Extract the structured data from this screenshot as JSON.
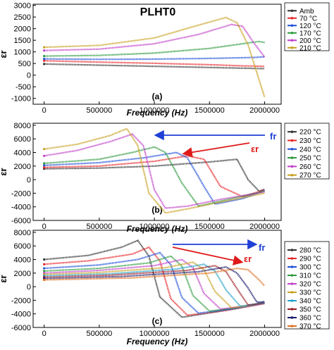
{
  "figure_title": "PLHT0",
  "chart_data": [
    {
      "panel": "(a)",
      "type": "line",
      "title": "PLHT0",
      "xlabel": "Frequency (Hz)",
      "ylabel": "εr",
      "xlim": [
        -100000,
        2150000
      ],
      "ylim": [
        -1250,
        3050
      ],
      "xticks": [
        0,
        500000,
        1000000,
        1500000,
        2000000
      ],
      "xtick_labels": [
        "0",
        "500000",
        "1000000",
        "1500000",
        "2000000"
      ],
      "yticks": [
        -1000,
        -500,
        0,
        500,
        1000,
        1500,
        2000,
        2500,
        3000
      ],
      "ytick_labels": [
        "-1000",
        "-500",
        "0",
        "500",
        "1000",
        "1500",
        "2000",
        "2500",
        "3000"
      ],
      "legend_position": "top-right",
      "series": [
        {
          "name": "Amb",
          "color": "#333333",
          "x": [
            0,
            500000,
            1000000,
            1500000,
            2000000
          ],
          "y": [
            480,
            430,
            380,
            330,
            280
          ]
        },
        {
          "name": "70 °C",
          "color": "#e8282b",
          "x": [
            0,
            500000,
            1000000,
            1500000,
            1800000,
            2000000
          ],
          "y": [
            620,
            560,
            510,
            450,
            400,
            380
          ]
        },
        {
          "name": "120 °C",
          "color": "#2050d8",
          "x": [
            0,
            500000,
            1000000,
            1500000,
            1900000,
            2000000
          ],
          "y": [
            700,
            680,
            690,
            720,
            760,
            790
          ]
        },
        {
          "name": "170 °C",
          "color": "#2e9a3e",
          "x": [
            0,
            500000,
            1000000,
            1500000,
            1800000,
            1950000,
            2000000
          ],
          "y": [
            820,
            850,
            950,
            1150,
            1350,
            1450,
            1400
          ]
        },
        {
          "name": "200 °C",
          "color": "#c040c8",
          "x": [
            0,
            500000,
            1000000,
            1400000,
            1700000,
            1800000,
            1900000,
            2000000
          ],
          "y": [
            1060,
            1120,
            1350,
            1750,
            2180,
            2100,
            1400,
            780
          ]
        },
        {
          "name": "210 °C",
          "color": "#c8a020",
          "x": [
            0,
            500000,
            1000000,
            1400000,
            1650000,
            1750000,
            1850000,
            2000000
          ],
          "y": [
            1200,
            1280,
            1600,
            2150,
            2480,
            2250,
            1300,
            -950
          ]
        }
      ]
    },
    {
      "panel": "(b)",
      "type": "line",
      "xlabel": "Frequency (Hz)",
      "ylabel": "εr",
      "xlim": [
        -100000,
        2150000
      ],
      "ylim": [
        -6000,
        8300
      ],
      "xticks": [
        0,
        500000,
        1000000,
        1500000,
        2000000
      ],
      "xtick_labels": [
        "0",
        "500000",
        "1000000",
        "1500000",
        "2000000"
      ],
      "yticks": [
        -6000,
        -4000,
        -2000,
        0,
        2000,
        4000,
        6000,
        8000
      ],
      "ytick_labels": [
        "-6000",
        "-4000",
        "-2000",
        "0",
        "2000",
        "4000",
        "6000",
        "8000"
      ],
      "legend_position": "right",
      "annotations": [
        "fr",
        "εr"
      ],
      "series": [
        {
          "name": "220 °C",
          "color": "#333333",
          "x": [
            0,
            500000,
            1000000,
            1500000,
            1750000,
            1850000,
            1950000,
            2000000
          ],
          "y": [
            1600,
            1700,
            2000,
            2600,
            3000,
            0,
            -1700,
            -1400
          ]
        },
        {
          "name": "230 °C",
          "color": "#e8282b",
          "x": [
            0,
            500000,
            1000000,
            1300000,
            1450000,
            1600000,
            1800000,
            2000000
          ],
          "y": [
            1800,
            2000,
            2700,
            3500,
            3000,
            -1000,
            -2500,
            -1500
          ]
        },
        {
          "name": "240 °C",
          "color": "#2050d8",
          "x": [
            0,
            500000,
            900000,
            1200000,
            1300000,
            1450000,
            1550000,
            1800000,
            2000000
          ],
          "y": [
            2100,
            2500,
            3200,
            4000,
            3200,
            -1000,
            -3600,
            -2800,
            -1600
          ]
        },
        {
          "name": "250 °C",
          "color": "#2e9a3e",
          "x": [
            0,
            500000,
            800000,
            1000000,
            1100000,
            1250000,
            1400000,
            1700000,
            2000000
          ],
          "y": [
            2400,
            3000,
            4000,
            4800,
            4000,
            -500,
            -3900,
            -2800,
            -1700
          ]
        },
        {
          "name": "260 °C",
          "color": "#c040c8",
          "x": [
            0,
            300000,
            600000,
            800000,
            900000,
            1000000,
            1100000,
            1300000,
            1600000,
            2000000
          ],
          "y": [
            3500,
            4300,
            5600,
            6700,
            5000,
            -1500,
            -4200,
            -3900,
            -2900,
            -1800
          ]
        },
        {
          "name": "270 °C",
          "color": "#c8a020",
          "x": [
            0,
            300000,
            600000,
            750000,
            850000,
            950000,
            1100000,
            1300000,
            1600000,
            2000000
          ],
          "y": [
            4500,
            5200,
            6500,
            7500,
            5000,
            -2000,
            -4900,
            -4300,
            -3300,
            -2000
          ]
        }
      ]
    },
    {
      "panel": "(c)",
      "type": "line",
      "xlabel": "Frequency (Hz)",
      "ylabel": "εr",
      "xlim": [
        -100000,
        2150000
      ],
      "ylim": [
        -6000,
        8300
      ],
      "xticks": [
        0,
        500000,
        1000000,
        1500000,
        2000000
      ],
      "xtick_labels": [
        "0",
        "500000",
        "1000000",
        "1500000",
        "2000000"
      ],
      "yticks": [
        -6000,
        -4000,
        -2000,
        0,
        2000,
        4000,
        6000,
        8000
      ],
      "ytick_labels": [
        "-6000",
        "-4000",
        "-2000",
        "0",
        "2000",
        "4000",
        "6000",
        "8000"
      ],
      "legend_position": "right",
      "annotations": [
        "fr",
        "εr"
      ],
      "series": [
        {
          "name": "280 °C",
          "color": "#333333",
          "x": [
            0,
            400000,
            700000,
            850000,
            950000,
            1050000,
            1250000,
            1600000,
            2000000
          ],
          "y": [
            4000,
            4600,
            5800,
            6800,
            4500,
            -1500,
            -4500,
            -3600,
            -2400
          ]
        },
        {
          "name": "290 °C",
          "color": "#e8282b",
          "x": [
            0,
            400000,
            800000,
            950000,
            1050000,
            1150000,
            1300000,
            1650000,
            2000000
          ],
          "y": [
            3300,
            3800,
            4800,
            5800,
            3800,
            -1800,
            -4200,
            -3500,
            -2500
          ]
        },
        {
          "name": "300 °C",
          "color": "#2050d8",
          "x": [
            0,
            500000,
            850000,
            1050000,
            1150000,
            1250000,
            1400000,
            1700000,
            2000000
          ],
          "y": [
            2700,
            3200,
            4000,
            5000,
            3200,
            -1600,
            -3900,
            -3300,
            -2400
          ]
        },
        {
          "name": "310 °C",
          "color": "#2e9a3e",
          "x": [
            0,
            500000,
            950000,
            1150000,
            1250000,
            1350000,
            1500000,
            1750000,
            2000000
          ],
          "y": [
            2300,
            2700,
            3500,
            4500,
            3000,
            -1300,
            -3600,
            -3100,
            -2300
          ]
        },
        {
          "name": "320 °C",
          "color": "#c040c8",
          "x": [
            0,
            500000,
            1000000,
            1250000,
            1350000,
            1450000,
            1600000,
            1800000,
            2000000
          ],
          "y": [
            2000,
            2400,
            3100,
            4000,
            2800,
            -1000,
            -3300,
            -2900,
            -2300
          ]
        },
        {
          "name": "330 °C",
          "color": "#c8a020",
          "x": [
            0,
            500000,
            1100000,
            1350000,
            1450000,
            1550000,
            1700000,
            1850000,
            2000000
          ],
          "y": [
            1800,
            2100,
            2800,
            3600,
            2500,
            -700,
            -3100,
            -2800,
            -2300
          ]
        },
        {
          "name": "340 °C",
          "color": "#20a0c8",
          "x": [
            0,
            600000,
            1200000,
            1450000,
            1550000,
            1650000,
            1780000,
            1900000,
            2000000
          ],
          "y": [
            1600,
            1900,
            2600,
            3300,
            2300,
            -500,
            -2900,
            -2600,
            -2300
          ]
        },
        {
          "name": "350 °C",
          "color": "#9a1a20",
          "x": [
            0,
            600000,
            1300000,
            1550000,
            1650000,
            1750000,
            1850000,
            1950000,
            2000000
          ],
          "y": [
            1400,
            1700,
            2400,
            3100,
            2200,
            -300,
            -2700,
            -2500,
            -2300
          ]
        },
        {
          "name": "360 °C",
          "color": "#1a1a70",
          "x": [
            0,
            700000,
            1400000,
            1650000,
            1750000,
            1850000,
            1930000,
            2000000
          ],
          "y": [
            1200,
            1500,
            2200,
            2900,
            2000,
            -200,
            -2300,
            -2200
          ]
        },
        {
          "name": "370 °C",
          "color": "#e07020",
          "x": [
            0,
            800000,
            1500000,
            1750000,
            1850000,
            1950000,
            2000000
          ],
          "y": [
            1000,
            1300,
            2000,
            2700,
            2500,
            1000,
            100
          ]
        }
      ]
    }
  ]
}
